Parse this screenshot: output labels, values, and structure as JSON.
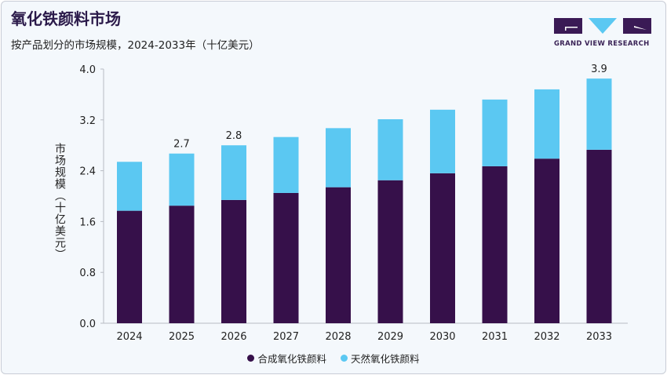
{
  "header": {
    "title": "氧化铁颜料市场",
    "subtitle": "按产品划分的市场规模，2024-2033年（十亿美元）",
    "logo_text": "GRAND VIEW RESEARCH"
  },
  "chart_data": {
    "type": "bar",
    "stacked": true,
    "categories": [
      "2024",
      "2025",
      "2026",
      "2027",
      "2028",
      "2029",
      "2030",
      "2031",
      "2032",
      "2033"
    ],
    "series": [
      {
        "name": "合成氧化铁颜料",
        "color": "#36104a",
        "values": [
          1.77,
          1.85,
          1.94,
          2.05,
          2.14,
          2.25,
          2.36,
          2.47,
          2.59,
          2.73
        ]
      },
      {
        "name": "天然氧化铁颜料",
        "color": "#5bc8f2",
        "values": [
          0.77,
          0.82,
          0.86,
          0.88,
          0.93,
          0.96,
          1.0,
          1.05,
          1.09,
          1.12
        ]
      }
    ],
    "data_labels": {
      "2025": "2.7",
      "2026": "2.8",
      "2033": "3.9"
    },
    "ylabel": "市场规模（十亿美元）",
    "xlabel": "",
    "ylim": [
      0,
      4.0
    ],
    "yticks": [
      "0.0",
      "0.8",
      "1.6",
      "2.4",
      "3.2",
      "4.0"
    ],
    "grid": false,
    "legend_position": "bottom"
  }
}
